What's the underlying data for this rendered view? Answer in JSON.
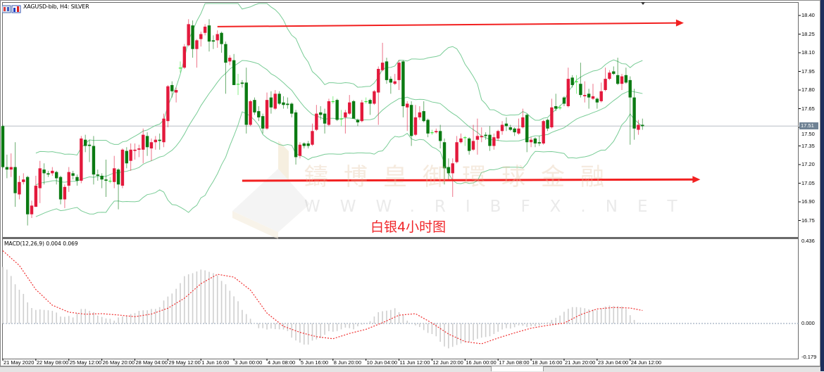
{
  "window": {
    "title": "XAGUSD-bib, H4:  SILVER",
    "current_price_label": "17.51"
  },
  "macd": {
    "label": "MACD(12,26,9) 0.004 0.069",
    "axis_labels": [
      "0.436",
      "0.000",
      "-0.179"
    ]
  },
  "annotation": {
    "text": "白银4小时图",
    "color": "#f0262a"
  },
  "watermark": {
    "chinese": "鑄博皇御環球金融",
    "url": "WWW.RIBFX.NET"
  },
  "colors": {
    "bull": "#e3193c",
    "bear": "#0b7a12",
    "doji": "#39e639",
    "bands": "#79cc96",
    "histogram": "#cfcfcf",
    "signal": "#f03030",
    "arrow": "#f22020",
    "current_price_line": "#b8bec6"
  },
  "chart_data": {
    "type": "candlestick",
    "symbol": "XAGUSD-bib",
    "timeframe": "H4",
    "ylim": [
      16.7,
      18.5
    ],
    "price_ticks": [
      "18.40",
      "18.25",
      "18.10",
      "17.95",
      "17.80",
      "17.65",
      "17.50",
      "17.35",
      "17.20",
      "17.05",
      "16.90",
      "16.75"
    ],
    "price_tick_values": [
      18.4,
      18.25,
      18.1,
      17.95,
      17.8,
      17.65,
      17.5,
      17.35,
      17.2,
      17.05,
      16.9,
      16.75
    ],
    "current_price": 17.51,
    "time_labels": [
      "21 May 2020",
      "22 May 08:00",
      "25 May 12:00",
      "26 May 20:00",
      "28 May 04:00",
      "29 May 12:00",
      "1 Jun 16:00",
      "3 Jun 00:00",
      "4 Jun 08:00",
      "5 Jun 16:00",
      "8 Jun 20:00",
      "10 Jun 04:00",
      "11 Jun 12:00",
      "12 Jun 20:00",
      "16 Jun 00:00",
      "17 Jun 08:00",
      "18 Jun 16:00",
      "21 Jun 20:00",
      "23 Jun 04:00",
      "24 Jun 12:00"
    ],
    "ohlc": [
      [
        17.51,
        17.52,
        17.17,
        17.18
      ],
      [
        17.18,
        17.28,
        17.09,
        17.16
      ],
      [
        17.16,
        17.29,
        17.1,
        17.18
      ],
      [
        17.18,
        17.38,
        16.86,
        16.97
      ],
      [
        16.96,
        17.11,
        16.92,
        17.06
      ],
      [
        17.06,
        17.13,
        17.04,
        17.08
      ],
      [
        17.1,
        17.11,
        16.71,
        16.8
      ],
      [
        16.8,
        16.91,
        16.77,
        16.87
      ],
      [
        16.86,
        17.11,
        16.86,
        17.03
      ],
      [
        17.01,
        17.23,
        16.89,
        17.17
      ],
      [
        17.16,
        17.21,
        17.04,
        17.13
      ],
      [
        17.13,
        17.15,
        17.1,
        17.12
      ],
      [
        17.13,
        17.18,
        17.11,
        17.15
      ],
      [
        17.14,
        17.15,
        17.04,
        17.09
      ],
      [
        17.1,
        17.11,
        16.88,
        16.92
      ],
      [
        16.92,
        17.04,
        16.85,
        17.02
      ],
      [
        17.03,
        17.18,
        16.98,
        17.14
      ],
      [
        17.13,
        17.15,
        17.08,
        17.11
      ],
      [
        17.1,
        17.12,
        17.03,
        17.07
      ],
      [
        17.07,
        17.43,
        17.05,
        17.41
      ],
      [
        17.4,
        17.44,
        17.3,
        17.35
      ],
      [
        17.36,
        17.4,
        17.22,
        17.35
      ],
      [
        17.35,
        17.43,
        17.04,
        17.12
      ],
      [
        17.12,
        17.16,
        17.07,
        17.11
      ],
      [
        17.11,
        17.13,
        17.01,
        17.08
      ],
      [
        17.08,
        17.24,
        16.94,
        17.07
      ],
      [
        17.07,
        17.1,
        17.05,
        17.07
      ],
      [
        17.06,
        17.27,
        17.01,
        17.17
      ],
      [
        17.16,
        17.17,
        16.84,
        17.04
      ],
      [
        17.03,
        17.33,
        17.01,
        17.32
      ],
      [
        17.31,
        17.34,
        17.17,
        17.21
      ],
      [
        17.23,
        17.37,
        17.15,
        17.32
      ],
      [
        17.31,
        17.37,
        17.24,
        17.32
      ],
      [
        17.32,
        17.36,
        17.26,
        17.33
      ],
      [
        17.32,
        17.49,
        17.21,
        17.44
      ],
      [
        17.43,
        17.46,
        17.27,
        17.34
      ],
      [
        17.33,
        17.41,
        17.23,
        17.38
      ],
      [
        17.38,
        17.43,
        17.32,
        17.4
      ],
      [
        17.4,
        17.45,
        17.32,
        17.39
      ],
      [
        17.38,
        17.61,
        17.34,
        17.57
      ],
      [
        17.55,
        17.84,
        17.5,
        17.83
      ],
      [
        17.84,
        17.87,
        17.74,
        17.79
      ],
      [
        17.78,
        17.82,
        17.7,
        17.8
      ],
      [
        17.98,
        18.03,
        17.94,
        17.98
      ],
      [
        17.98,
        18.17,
        17.97,
        18.15
      ],
      [
        18.16,
        18.37,
        18.15,
        18.33
      ],
      [
        18.32,
        18.36,
        18.06,
        18.13
      ],
      [
        18.13,
        18.21,
        17.98,
        18.2
      ],
      [
        18.21,
        18.27,
        18.15,
        18.25
      ],
      [
        18.26,
        18.33,
        18.24,
        18.31
      ],
      [
        18.32,
        18.37,
        18.11,
        18.19
      ],
      [
        18.2,
        18.24,
        18.13,
        18.19
      ],
      [
        18.2,
        18.28,
        18.14,
        18.25
      ],
      [
        18.26,
        18.27,
        18.1,
        18.17
      ],
      [
        18.17,
        18.19,
        17.77,
        18.02
      ],
      [
        18.03,
        18.08,
        18.0,
        18.06
      ],
      [
        18.04,
        18.09,
        17.84,
        17.84
      ],
      [
        17.85,
        17.93,
        17.76,
        17.85
      ],
      [
        17.86,
        17.88,
        17.82,
        17.85
      ],
      [
        17.86,
        17.98,
        17.45,
        17.52
      ],
      [
        17.52,
        17.72,
        17.51,
        17.71
      ],
      [
        17.72,
        17.74,
        17.6,
        17.62
      ],
      [
        17.63,
        17.67,
        17.55,
        17.58
      ],
      [
        17.59,
        17.61,
        17.45,
        17.49
      ],
      [
        17.49,
        17.78,
        17.48,
        17.72
      ],
      [
        17.74,
        17.79,
        17.61,
        17.66
      ],
      [
        17.65,
        17.8,
        17.64,
        17.77
      ],
      [
        17.77,
        17.79,
        17.68,
        17.69
      ],
      [
        17.7,
        17.75,
        17.65,
        17.68
      ],
      [
        17.69,
        17.74,
        17.65,
        17.68
      ],
      [
        17.69,
        17.7,
        17.58,
        17.61
      ],
      [
        17.62,
        17.64,
        17.2,
        17.26
      ],
      [
        17.27,
        17.38,
        17.25,
        17.36
      ],
      [
        17.37,
        17.38,
        17.33,
        17.35
      ],
      [
        17.37,
        17.39,
        17.33,
        17.35
      ],
      [
        17.36,
        17.53,
        17.35,
        17.47
      ],
      [
        17.48,
        17.68,
        17.47,
        17.61
      ],
      [
        17.62,
        17.67,
        17.56,
        17.6
      ],
      [
        17.61,
        17.65,
        17.45,
        17.53
      ],
      [
        17.52,
        17.73,
        17.51,
        17.71
      ],
      [
        17.71,
        17.75,
        17.69,
        17.71
      ],
      [
        17.72,
        17.73,
        17.55,
        17.56
      ],
      [
        17.57,
        17.64,
        17.51,
        17.57
      ],
      [
        17.58,
        17.64,
        17.45,
        17.62
      ],
      [
        17.61,
        17.76,
        17.6,
        17.7
      ],
      [
        17.71,
        17.72,
        17.57,
        17.57
      ],
      [
        17.56,
        17.57,
        17.51,
        17.54
      ],
      [
        17.55,
        17.72,
        17.54,
        17.7
      ],
      [
        17.71,
        17.74,
        17.69,
        17.71
      ],
      [
        17.72,
        17.73,
        17.6,
        17.69
      ],
      [
        17.69,
        17.8,
        17.68,
        17.79
      ],
      [
        17.78,
        17.99,
        17.52,
        17.97
      ],
      [
        17.96,
        18.18,
        17.95,
        18.02
      ],
      [
        18.03,
        18.06,
        17.85,
        17.88
      ],
      [
        17.89,
        17.91,
        17.77,
        17.86
      ],
      [
        17.85,
        17.93,
        17.84,
        17.87
      ],
      [
        17.88,
        18.04,
        17.8,
        18.02
      ],
      [
        18.03,
        18.04,
        17.58,
        17.67
      ],
      [
        17.66,
        17.71,
        17.47,
        17.69
      ],
      [
        17.68,
        17.71,
        17.35,
        17.43
      ],
      [
        17.44,
        17.68,
        17.43,
        17.58
      ],
      [
        17.58,
        17.67,
        17.56,
        17.62
      ],
      [
        17.63,
        17.71,
        17.54,
        17.55
      ],
      [
        17.56,
        17.57,
        17.42,
        17.45
      ],
      [
        17.46,
        17.48,
        17.44,
        17.46
      ],
      [
        17.46,
        17.49,
        17.45,
        17.47
      ],
      [
        17.47,
        17.52,
        17.33,
        17.39
      ],
      [
        17.38,
        17.41,
        17.04,
        17.17
      ],
      [
        17.18,
        17.25,
        17.07,
        17.13
      ],
      [
        17.13,
        17.25,
        16.94,
        17.21
      ],
      [
        17.22,
        17.43,
        17.21,
        17.38
      ],
      [
        17.38,
        17.45,
        17.37,
        17.41
      ],
      [
        17.42,
        17.43,
        17.35,
        17.42
      ],
      [
        17.41,
        17.42,
        17.28,
        17.31
      ],
      [
        17.32,
        17.52,
        17.31,
        17.39
      ],
      [
        17.4,
        17.57,
        17.28,
        17.43
      ],
      [
        17.42,
        17.5,
        17.38,
        17.43
      ],
      [
        17.44,
        17.46,
        17.4,
        17.43
      ],
      [
        17.44,
        17.51,
        17.31,
        17.35
      ],
      [
        17.35,
        17.45,
        17.32,
        17.42
      ],
      [
        17.41,
        17.48,
        17.39,
        17.47
      ],
      [
        17.47,
        17.55,
        17.44,
        17.52
      ],
      [
        17.53,
        17.58,
        17.47,
        17.51
      ],
      [
        17.5,
        17.52,
        17.47,
        17.48
      ],
      [
        17.49,
        17.5,
        17.43,
        17.46
      ],
      [
        17.45,
        17.57,
        17.44,
        17.49
      ],
      [
        17.5,
        17.65,
        17.49,
        17.58
      ],
      [
        17.6,
        17.61,
        17.3,
        17.38
      ],
      [
        17.38,
        17.42,
        17.34,
        17.4
      ],
      [
        17.41,
        17.42,
        17.34,
        17.37
      ],
      [
        17.38,
        17.43,
        17.35,
        17.37
      ],
      [
        17.37,
        17.56,
        17.36,
        17.55
      ],
      [
        17.56,
        17.57,
        17.47,
        17.49
      ],
      [
        17.5,
        17.73,
        17.49,
        17.66
      ],
      [
        17.67,
        17.77,
        17.63,
        17.65
      ],
      [
        17.66,
        17.68,
        17.64,
        17.66
      ],
      [
        17.74,
        17.75,
        17.67,
        17.69
      ],
      [
        17.67,
        17.98,
        17.66,
        17.89
      ],
      [
        17.9,
        17.92,
        17.82,
        17.84
      ],
      [
        17.87,
        17.92,
        17.77,
        17.87
      ],
      [
        17.85,
        18.02,
        17.74,
        17.76
      ],
      [
        17.75,
        17.87,
        17.7,
        17.76
      ],
      [
        17.77,
        17.81,
        17.65,
        17.74
      ],
      [
        17.73,
        17.85,
        17.72,
        17.75
      ],
      [
        17.73,
        17.74,
        17.65,
        17.7
      ],
      [
        17.71,
        17.86,
        17.7,
        17.79
      ],
      [
        17.8,
        17.98,
        17.79,
        17.89
      ],
      [
        17.89,
        17.96,
        17.88,
        17.94
      ],
      [
        17.95,
        17.99,
        17.92,
        17.93
      ],
      [
        17.92,
        18.06,
        17.84,
        17.85
      ],
      [
        17.85,
        17.93,
        17.8,
        17.91
      ],
      [
        17.92,
        17.98,
        17.85,
        17.86
      ],
      [
        17.88,
        17.91,
        17.36,
        17.74
      ],
      [
        17.74,
        17.81,
        17.4,
        17.49
      ],
      [
        17.48,
        17.56,
        17.44,
        17.52
      ],
      [
        17.52,
        17.57,
        17.48,
        17.51
      ]
    ],
    "bollinger": {
      "period": 20,
      "deviations": 2
    },
    "horizontal_arrows": [
      {
        "from_price": 18.31,
        "to_price": 18.34,
        "from_time_index": 52,
        "to_time_index": 165
      },
      {
        "from_price": 17.07,
        "to_price": 17.08,
        "from_time_index": 58,
        "to_time_index": 169
      }
    ],
    "macd_histogram": [
      0.3,
      0.286,
      0.252,
      0.208,
      0.179,
      0.157,
      0.112,
      0.082,
      0.072,
      0.075,
      0.072,
      0.07,
      0.067,
      0.058,
      0.037,
      0.035,
      0.04,
      0.032,
      0.055,
      0.077,
      0.077,
      0.067,
      0.06,
      0.042,
      0.035,
      0.027,
      0.025,
      0.015,
      0.032,
      0.037,
      0.04,
      0.05,
      0.055,
      0.067,
      0.07,
      0.07,
      0.077,
      0.077,
      0.087,
      0.122,
      0.143,
      0.159,
      0.184,
      0.214,
      0.251,
      0.261,
      0.267,
      0.276,
      0.286,
      0.282,
      0.274,
      0.267,
      0.255,
      0.226,
      0.208,
      0.174,
      0.144,
      0.118,
      0.072,
      0.05,
      0.025,
      -0.002,
      -0.025,
      -0.025,
      -0.032,
      -0.027,
      -0.03,
      -0.031,
      -0.032,
      -0.04,
      -0.075,
      -0.09,
      -0.102,
      -0.112,
      -0.112,
      -0.091,
      -0.085,
      -0.077,
      -0.06,
      -0.041,
      -0.044,
      -0.04,
      -0.031,
      -0.022,
      -0.025,
      -0.031,
      -0.015,
      -0.006,
      0.0,
      0.012,
      0.037,
      0.06,
      0.065,
      0.068,
      0.072,
      0.081,
      0.06,
      0.047,
      0.015,
      0.0,
      -0.01,
      -0.019,
      -0.035,
      -0.05,
      -0.056,
      -0.068,
      -0.097,
      -0.122,
      -0.132,
      -0.124,
      -0.114,
      -0.106,
      -0.1,
      -0.1,
      -0.09,
      -0.081,
      -0.075,
      -0.072,
      -0.068,
      -0.056,
      -0.044,
      -0.032,
      -0.025,
      -0.027,
      -0.02,
      -0.01,
      -0.012,
      -0.019,
      -0.015,
      -0.015,
      -0.012,
      -0.002,
      0.006,
      0.019,
      0.03,
      0.042,
      0.062,
      0.078,
      0.087,
      0.087,
      0.085,
      0.081,
      0.075,
      0.075,
      0.072,
      0.08,
      0.09,
      0.095,
      0.092,
      0.092,
      0.09,
      0.077,
      0.044,
      0.019,
      0.004
    ],
    "macd_signal": [
      0.386,
      0.308,
      0.18,
      0.097,
      0.06,
      0.049,
      0.052,
      0.045,
      0.036,
      0.05,
      0.081,
      0.134,
      0.211,
      0.261,
      0.246,
      0.177,
      0.055,
      -0.015,
      -0.047,
      -0.07,
      -0.081,
      -0.053,
      -0.031,
      0.004,
      0.044,
      0.052,
      0.002,
      -0.056,
      -0.096,
      -0.108,
      -0.077,
      -0.05,
      -0.025,
      -0.01,
      0.002,
      0.047,
      0.077,
      0.085,
      0.082,
      0.069
    ],
    "macd_ylim": [
      -0.179,
      0.436
    ],
    "grid": false
  }
}
